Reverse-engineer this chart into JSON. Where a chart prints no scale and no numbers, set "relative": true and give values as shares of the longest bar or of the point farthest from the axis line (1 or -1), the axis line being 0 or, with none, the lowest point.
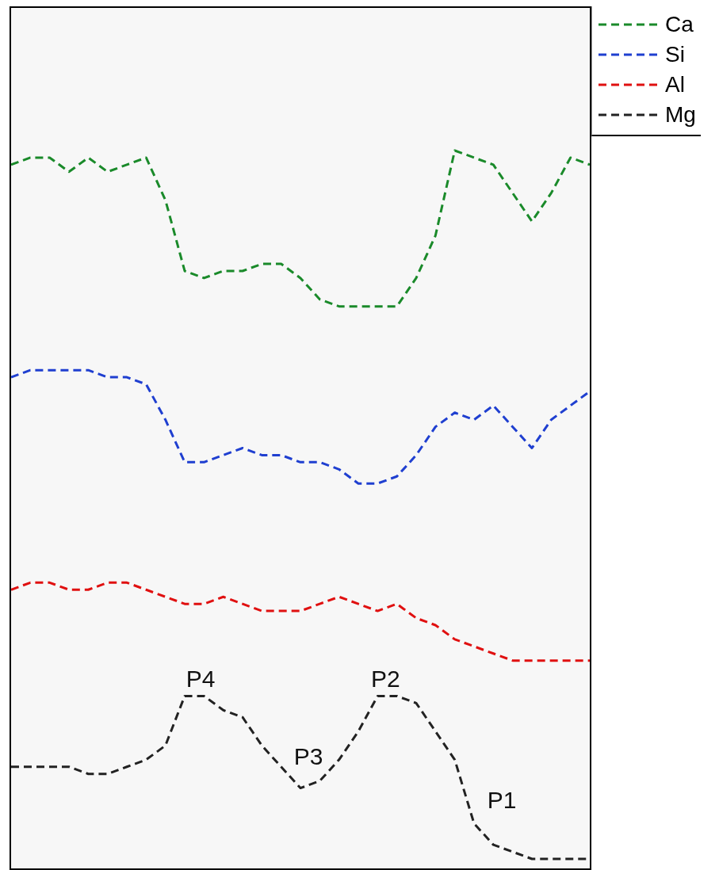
{
  "chart_data": {
    "type": "line",
    "relative": true,
    "line_style": "dashed",
    "marker": "none",
    "legend": "top right",
    "tick_labels": false,
    "categories": [
      null,
      null,
      null,
      null,
      null,
      null,
      null,
      null,
      null,
      null,
      null,
      null,
      null,
      null,
      null,
      null,
      null,
      null,
      null,
      null,
      null,
      null,
      null,
      null,
      null,
      null,
      null,
      null,
      null,
      null,
      null
    ],
    "series": [
      {
        "name": "Ca",
        "color": "#1a8a2a",
        "values": [
          0.98,
          0.99,
          0.99,
          0.97,
          0.99,
          0.97,
          0.98,
          0.99,
          0.93,
          0.83,
          0.82,
          0.83,
          0.83,
          0.84,
          0.84,
          0.82,
          0.79,
          0.78,
          0.78,
          0.78,
          0.78,
          0.82,
          0.88,
          1,
          0.99,
          0.98,
          0.94,
          0.9,
          0.94,
          0.99,
          0.98
        ]
      },
      {
        "name": "Si",
        "color": "#1f3fd0",
        "values": [
          0.68,
          0.69,
          0.69,
          0.69,
          0.69,
          0.68,
          0.68,
          0.67,
          0.62,
          0.56,
          0.56,
          0.57,
          0.58,
          0.57,
          0.57,
          0.56,
          0.56,
          0.55,
          0.53,
          0.53,
          0.54,
          0.57,
          0.61,
          0.63,
          0.62,
          0.64,
          0.61,
          0.58,
          0.62,
          0.64,
          0.66
        ]
      },
      {
        "name": "Al",
        "color": "#e01010",
        "values": [
          0.38,
          0.39,
          0.39,
          0.38,
          0.38,
          0.39,
          0.39,
          0.38,
          0.37,
          0.36,
          0.36,
          0.37,
          0.36,
          0.35,
          0.35,
          0.35,
          0.36,
          0.37,
          0.36,
          0.35,
          0.36,
          0.34,
          0.33,
          0.31,
          0.3,
          0.29,
          0.28,
          0.28,
          0.28,
          0.28,
          0.28
        ]
      },
      {
        "name": "Mg",
        "color": "#222222",
        "values": [
          0.13,
          0.13,
          0.13,
          0.13,
          0.12,
          0.12,
          0.13,
          0.14,
          0.16,
          0.23,
          0.23,
          0.21,
          0.2,
          0.16,
          0.13,
          0.1,
          0.11,
          0.14,
          0.18,
          0.23,
          0.23,
          0.22,
          0.18,
          0.14,
          0.05,
          0.02,
          0.01,
          0,
          0,
          0,
          0
        ]
      }
    ],
    "annotations": [
      "P4",
      "P3",
      "P2",
      "P1"
    ]
  }
}
